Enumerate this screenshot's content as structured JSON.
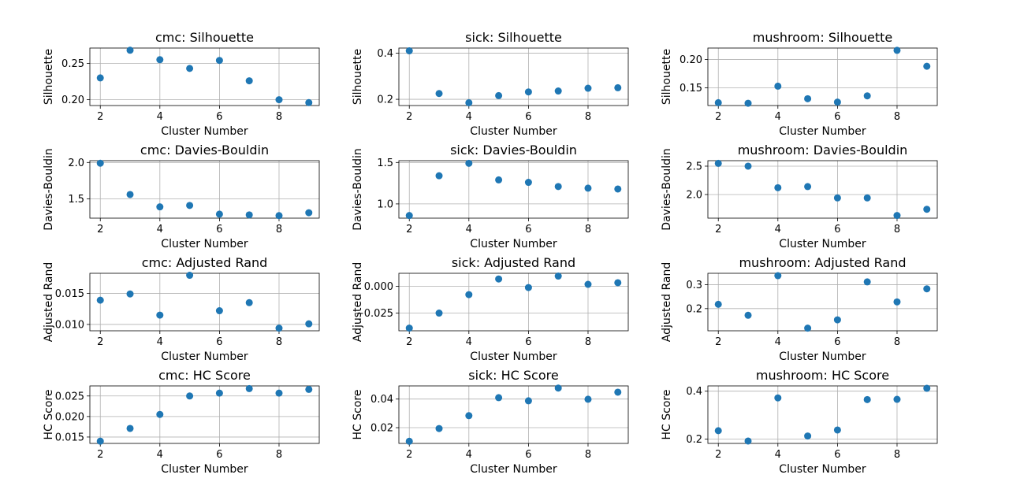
{
  "chart_data": [
    {
      "type": "scatter",
      "title": "cmc: Silhouette",
      "xlabel": "Cluster Number",
      "ylabel": "Silhouette",
      "x": [
        2,
        3,
        4,
        5,
        6,
        7,
        8,
        9
      ],
      "y": [
        0.23,
        0.268,
        0.255,
        0.243,
        0.254,
        0.226,
        0.2,
        0.196
      ],
      "xlim": [
        1.65,
        9.35
      ],
      "ylim": [
        0.192,
        0.271
      ],
      "xticks": [
        2,
        4,
        6,
        8
      ],
      "yticks": [
        0.2,
        0.25
      ],
      "ytick_labels": [
        "0.20",
        "0.25"
      ],
      "grid": true
    },
    {
      "type": "scatter",
      "title": "sick: Silhouette",
      "xlabel": "Cluster Number",
      "ylabel": "Silhouette",
      "x": [
        2,
        3,
        4,
        5,
        6,
        7,
        8,
        9
      ],
      "y": [
        0.41,
        0.225,
        0.185,
        0.216,
        0.232,
        0.236,
        0.248,
        0.25
      ],
      "xlim": [
        1.65,
        9.35
      ],
      "ylim": [
        0.173,
        0.422
      ],
      "xticks": [
        2,
        4,
        6,
        8
      ],
      "yticks": [
        0.2,
        0.4
      ],
      "ytick_labels": [
        "0.2",
        "0.4"
      ],
      "grid": true
    },
    {
      "type": "scatter",
      "title": "mushroom: Silhouette",
      "xlabel": "Cluster Number",
      "ylabel": "Silhouette",
      "x": [
        2,
        3,
        4,
        5,
        6,
        7,
        8,
        9
      ],
      "y": [
        0.124,
        0.123,
        0.153,
        0.131,
        0.125,
        0.136,
        0.216,
        0.188
      ],
      "xlim": [
        1.65,
        9.35
      ],
      "ylim": [
        0.119,
        0.22
      ],
      "xticks": [
        2,
        4,
        6,
        8
      ],
      "yticks": [
        0.15,
        0.2
      ],
      "ytick_labels": [
        "0.15",
        "0.20"
      ],
      "grid": true
    },
    {
      "type": "scatter",
      "title": "cmc: Davies-Bouldin",
      "xlabel": "Cluster Number",
      "ylabel": "Davies-Bouldin",
      "x": [
        2,
        3,
        4,
        5,
        6,
        7,
        8,
        9
      ],
      "y": [
        1.99,
        1.56,
        1.39,
        1.41,
        1.29,
        1.28,
        1.27,
        1.31
      ],
      "xlim": [
        1.65,
        9.35
      ],
      "ylim": [
        1.235,
        2.025
      ],
      "xticks": [
        2,
        4,
        6,
        8
      ],
      "yticks": [
        1.5,
        2.0
      ],
      "ytick_labels": [
        "1.5",
        "2.0"
      ],
      "grid": true
    },
    {
      "type": "scatter",
      "title": "sick: Davies-Bouldin",
      "xlabel": "Cluster Number",
      "ylabel": "Davies-Bouldin",
      "x": [
        2,
        3,
        4,
        5,
        6,
        7,
        8,
        9
      ],
      "y": [
        0.86,
        1.34,
        1.49,
        1.29,
        1.26,
        1.21,
        1.19,
        1.18
      ],
      "xlim": [
        1.65,
        9.35
      ],
      "ylim": [
        0.828,
        1.522
      ],
      "xticks": [
        2,
        4,
        6,
        8
      ],
      "yticks": [
        1.0,
        1.5
      ],
      "ytick_labels": [
        "1.0",
        "1.5"
      ],
      "grid": true
    },
    {
      "type": "scatter",
      "title": "mushroom: Davies-Bouldin",
      "xlabel": "Cluster Number",
      "ylabel": "Davies-Bouldin",
      "x": [
        2,
        3,
        4,
        5,
        6,
        7,
        8,
        9
      ],
      "y": [
        2.55,
        2.5,
        2.12,
        2.14,
        1.94,
        1.94,
        1.63,
        1.74
      ],
      "xlim": [
        1.65,
        9.35
      ],
      "ylim": [
        1.583,
        2.597
      ],
      "xticks": [
        2,
        4,
        6,
        8
      ],
      "yticks": [
        2.0,
        2.5
      ],
      "ytick_labels": [
        "2.0",
        "2.5"
      ],
      "grid": true
    },
    {
      "type": "scatter",
      "title": "cmc: Adjusted Rand",
      "xlabel": "Cluster Number",
      "ylabel": "Adjusted Rand",
      "x": [
        2,
        3,
        4,
        5,
        6,
        7,
        8,
        9
      ],
      "y": [
        0.0139,
        0.0149,
        0.0115,
        0.0179,
        0.0122,
        0.0135,
        0.0094,
        0.0101
      ],
      "xlim": [
        1.65,
        9.35
      ],
      "ylim": [
        0.00898,
        0.01822
      ],
      "xticks": [
        2,
        4,
        6,
        8
      ],
      "yticks": [
        0.01,
        0.015
      ],
      "ytick_labels": [
        "0.010",
        "0.015"
      ],
      "grid": true
    },
    {
      "type": "scatter",
      "title": "sick: Adjusted Rand",
      "xlabel": "Cluster Number",
      "ylabel": "Adjusted Rand",
      "x": [
        2,
        3,
        4,
        5,
        6,
        7,
        8,
        9
      ],
      "y": [
        -0.039,
        -0.025,
        -0.0078,
        0.0068,
        -0.0012,
        0.0095,
        0.0018,
        0.0033
      ],
      "xlim": [
        1.65,
        9.35
      ],
      "ylim": [
        -0.0415,
        0.0121
      ],
      "xticks": [
        2,
        4,
        6,
        8
      ],
      "yticks": [
        -0.025,
        0.0
      ],
      "ytick_labels": [
        "−0.025",
        "0.000"
      ],
      "grid": true
    },
    {
      "type": "scatter",
      "title": "mushroom: Adjusted Rand",
      "xlabel": "Cluster Number",
      "ylabel": "Adjusted Rand",
      "x": [
        2,
        3,
        4,
        5,
        6,
        7,
        8,
        9
      ],
      "y": [
        0.218,
        0.172,
        0.338,
        0.118,
        0.153,
        0.312,
        0.228,
        0.283
      ],
      "xlim": [
        1.65,
        9.35
      ],
      "ylim": [
        0.107,
        0.348
      ],
      "xticks": [
        2,
        4,
        6,
        8
      ],
      "yticks": [
        0.2,
        0.3
      ],
      "ytick_labels": [
        "0.2",
        "0.3"
      ],
      "grid": true
    },
    {
      "type": "scatter",
      "title": "cmc: HC Score",
      "xlabel": "Cluster Number",
      "ylabel": "HC Score",
      "x": [
        2,
        3,
        4,
        5,
        6,
        7,
        8,
        9
      ],
      "y": [
        0.014,
        0.0171,
        0.0205,
        0.025,
        0.0257,
        0.0268,
        0.0257,
        0.0266
      ],
      "xlim": [
        1.65,
        9.35
      ],
      "ylim": [
        0.01345,
        0.02745
      ],
      "xticks": [
        2,
        4,
        6,
        8
      ],
      "yticks": [
        0.015,
        0.02,
        0.025
      ],
      "ytick_labels": [
        "0.015",
        "0.020",
        "0.025"
      ],
      "grid": true
    },
    {
      "type": "scatter",
      "title": "sick: HC Score",
      "xlabel": "Cluster Number",
      "ylabel": "HC Score",
      "x": [
        2,
        3,
        4,
        5,
        6,
        7,
        8,
        9
      ],
      "y": [
        0.0105,
        0.0194,
        0.0284,
        0.041,
        0.0388,
        0.0477,
        0.0399,
        0.0448
      ],
      "xlim": [
        1.65,
        9.35
      ],
      "ylim": [
        0.009,
        0.0492
      ],
      "xticks": [
        2,
        4,
        6,
        8
      ],
      "yticks": [
        0.02,
        0.04
      ],
      "ytick_labels": [
        "0.02",
        "0.04"
      ],
      "grid": true
    },
    {
      "type": "scatter",
      "title": "mushroom: HC Score",
      "xlabel": "Cluster Number",
      "ylabel": "HC Score",
      "x": [
        2,
        3,
        4,
        5,
        6,
        7,
        8,
        9
      ],
      "y": [
        0.235,
        0.192,
        0.372,
        0.213,
        0.238,
        0.365,
        0.366,
        0.412
      ],
      "xlim": [
        1.65,
        9.35
      ],
      "ylim": [
        0.182,
        0.422
      ],
      "xticks": [
        2,
        4,
        6,
        8
      ],
      "yticks": [
        0.2,
        0.4
      ],
      "ytick_labels": [
        "0.2",
        "0.4"
      ],
      "grid": true
    }
  ],
  "style": {
    "marker_color": "#1f77b4",
    "grid_color": "#b0b0b0"
  }
}
